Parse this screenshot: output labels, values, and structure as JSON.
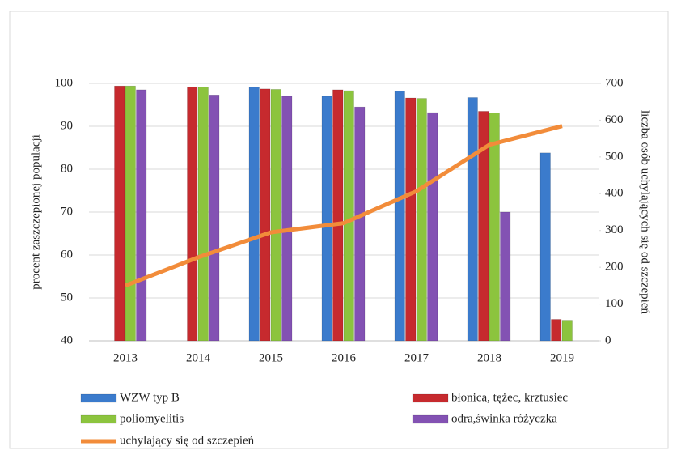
{
  "chart_data": {
    "type": "bar",
    "categories": [
      "2013",
      "2014",
      "2015",
      "2016",
      "2017",
      "2018",
      "2019"
    ],
    "series": [
      {
        "name": "WZW typ B",
        "color": "#3b7bcc",
        "values": [
          null,
          null,
          99.1,
          97.0,
          98.2,
          96.7,
          83.8
        ]
      },
      {
        "name": "błonica, tężec, krztusiec",
        "color": "#c62a2e",
        "values": [
          99.4,
          99.2,
          98.7,
          98.5,
          96.6,
          93.5,
          45.0
        ]
      },
      {
        "name": "poliomyelitis",
        "color": "#8cc43e",
        "values": [
          99.4,
          99.1,
          98.6,
          98.3,
          96.5,
          93.1,
          44.8
        ]
      },
      {
        "name": "odra,świnka różyczka",
        "color": "#8352b3",
        "values": [
          98.5,
          97.3,
          97.0,
          94.5,
          93.2,
          70.0,
          null
        ]
      },
      {
        "name": "uchylający się od szczepień",
        "color": "#f28c3a",
        "type": "line",
        "axis": "y2",
        "values": [
          150,
          227,
          295,
          320,
          407,
          533,
          584
        ]
      }
    ],
    "ylabel": "procent zaszczepionej populacji",
    "y2label": "liczba osób uchylających się od szczepień",
    "ylim": [
      40,
      100
    ],
    "yticks": [
      40,
      50,
      60,
      70,
      80,
      90,
      100
    ],
    "y2lim": [
      0,
      700
    ],
    "y2ticks": [
      0,
      100,
      200,
      300,
      400,
      500,
      600,
      700
    ],
    "grid": true
  }
}
